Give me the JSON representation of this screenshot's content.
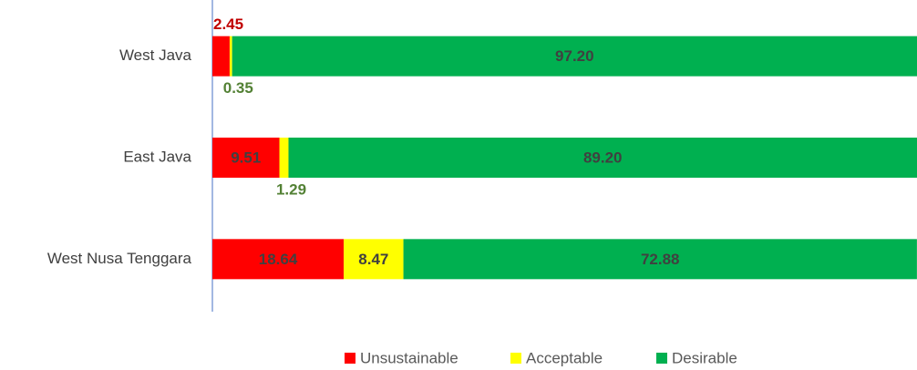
{
  "chart_data": {
    "type": "stacked_barh",
    "categories": [
      "West Java",
      "East Java",
      "West Nusa Tenggara"
    ],
    "series": [
      {
        "name": "Unsustainable",
        "color": "#ff0000",
        "values": [
          2.45,
          9.51,
          18.64
        ]
      },
      {
        "name": "Acceptable",
        "color": "#ffff00",
        "values": [
          0.35,
          1.29,
          8.47
        ]
      },
      {
        "name": "Desirable",
        "color": "#00b050",
        "values": [
          97.2,
          89.2,
          72.88
        ]
      }
    ],
    "value_labels": [
      [
        "2.45",
        "9.51",
        "18.64"
      ],
      [
        "0.35",
        "1.29",
        "8.47"
      ],
      [
        "97.20",
        "89.20",
        "72.88"
      ]
    ],
    "xlim": [
      0,
      100
    ],
    "legend": "bottom"
  }
}
